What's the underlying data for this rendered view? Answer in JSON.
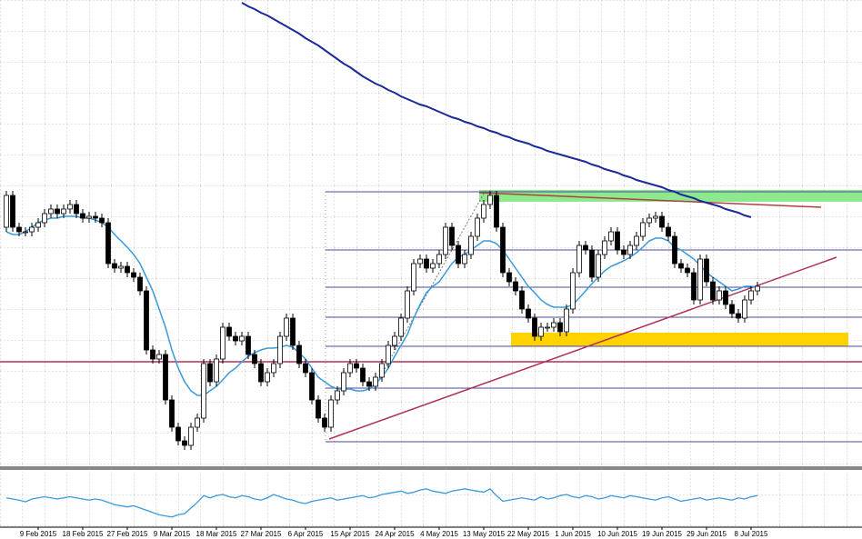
{
  "chart_data": {
    "type": "candlestick",
    "categories": [
      null,
      null,
      null,
      null,
      null,
      "9 Feb 2015",
      null,
      null,
      null,
      null,
      null,
      null,
      "18 Feb 2015",
      null,
      null,
      null,
      null,
      null,
      null,
      "27 Feb 2015",
      null,
      null,
      null,
      null,
      null,
      null,
      "9 Mar 2015",
      null,
      null,
      null,
      null,
      null,
      null,
      "18 Mar 2015",
      null,
      null,
      null,
      null,
      null,
      null,
      "27 Mar 2015",
      null,
      null,
      null,
      null,
      null,
      null,
      "6 Apr 2015",
      null,
      null,
      null,
      null,
      null,
      null,
      "15 Apr 2015",
      null,
      null,
      null,
      null,
      null,
      null,
      "24 Apr 2015",
      null,
      null,
      null,
      null,
      null,
      null,
      "4 May 2015",
      null,
      null,
      null,
      null,
      null,
      null,
      "13 May 2015",
      null,
      null,
      null,
      null,
      null,
      null,
      "22 May 2015",
      null,
      null,
      null,
      null,
      null,
      null,
      "1 Jun 2015",
      null,
      null,
      null,
      null,
      null,
      null,
      "10 Jun 2015",
      null,
      null,
      null,
      null,
      null,
      null,
      "19 Jun 2015",
      null,
      null,
      null,
      null,
      null,
      null,
      "29 Jun 2015",
      null,
      null,
      null,
      null,
      null,
      null,
      "8 Jul 2015",
      null
    ],
    "open": [
      263,
      298,
      263,
      258,
      258,
      263,
      268,
      278,
      283,
      278,
      283,
      288,
      278,
      273,
      275,
      273,
      268,
      223,
      218,
      220,
      213,
      208,
      193,
      128,
      118,
      123,
      73,
      43,
      28,
      23,
      43,
      53,
      113,
      93,
      118,
      153,
      143,
      138,
      143,
      123,
      113,
      93,
      103,
      113,
      143,
      163,
      133,
      113,
      103,
      73,
      53,
      43,
      73,
      83,
      103,
      113,
      108,
      93,
      88,
      98,
      113,
      133,
      143,
      163,
      193,
      223,
      228,
      218,
      223,
      233,
      263,
      243,
      223,
      233,
      253,
      273,
      288,
      298,
      263,
      213,
      203,
      193,
      173,
      163,
      143,
      153,
      153,
      158,
      148,
      173,
      213,
      243,
      238,
      208,
      233,
      248,
      258,
      238,
      233,
      243,
      253,
      268,
      273,
      275,
      263,
      253,
      223,
      218,
      213,
      183,
      228,
      203,
      183,
      193,
      178,
      168,
      163,
      183,
      193
    ],
    "high": [
      303,
      303,
      268,
      263,
      268,
      273,
      283,
      288,
      288,
      288,
      293,
      293,
      283,
      280,
      280,
      278,
      273,
      228,
      225,
      225,
      218,
      213,
      198,
      133,
      128,
      128,
      78,
      48,
      33,
      48,
      58,
      118,
      118,
      123,
      158,
      158,
      148,
      148,
      148,
      128,
      118,
      108,
      118,
      148,
      168,
      168,
      138,
      118,
      108,
      78,
      58,
      78,
      88,
      108,
      118,
      118,
      113,
      98,
      103,
      118,
      138,
      148,
      168,
      198,
      228,
      233,
      233,
      228,
      238,
      268,
      268,
      248,
      238,
      258,
      278,
      293,
      303,
      303,
      268,
      218,
      208,
      198,
      178,
      168,
      158,
      158,
      163,
      163,
      178,
      218,
      248,
      248,
      243,
      238,
      253,
      263,
      263,
      243,
      248,
      258,
      273,
      278,
      280,
      280,
      268,
      258,
      228,
      223,
      218,
      233,
      233,
      208,
      198,
      198,
      183,
      173,
      188,
      198,
      203
    ],
    "low": [
      258,
      258,
      253,
      253,
      253,
      258,
      263,
      273,
      273,
      273,
      278,
      273,
      268,
      268,
      268,
      263,
      218,
      213,
      213,
      208,
      203,
      188,
      123,
      113,
      113,
      68,
      38,
      23,
      18,
      18,
      38,
      48,
      88,
      88,
      113,
      138,
      133,
      133,
      118,
      108,
      88,
      88,
      98,
      108,
      138,
      128,
      108,
      98,
      68,
      48,
      38,
      38,
      68,
      78,
      98,
      103,
      88,
      83,
      83,
      93,
      108,
      128,
      138,
      158,
      188,
      218,
      213,
      213,
      218,
      228,
      238,
      218,
      218,
      228,
      248,
      268,
      283,
      258,
      208,
      198,
      188,
      168,
      158,
      138,
      138,
      148,
      148,
      143,
      143,
      168,
      208,
      233,
      203,
      203,
      228,
      243,
      233,
      228,
      228,
      238,
      248,
      263,
      268,
      258,
      248,
      218,
      213,
      208,
      178,
      178,
      198,
      178,
      178,
      173,
      163,
      158,
      158,
      178,
      188
    ],
    "close": [
      298,
      263,
      258,
      258,
      263,
      268,
      278,
      283,
      278,
      283,
      288,
      278,
      273,
      275,
      273,
      268,
      223,
      218,
      220,
      213,
      208,
      193,
      128,
      118,
      123,
      73,
      43,
      28,
      23,
      43,
      53,
      113,
      93,
      118,
      153,
      143,
      138,
      143,
      123,
      113,
      93,
      103,
      113,
      143,
      163,
      133,
      113,
      103,
      73,
      53,
      43,
      73,
      83,
      103,
      113,
      108,
      93,
      88,
      98,
      113,
      133,
      143,
      163,
      193,
      223,
      228,
      218,
      223,
      233,
      263,
      243,
      223,
      233,
      253,
      273,
      288,
      298,
      263,
      213,
      203,
      193,
      173,
      163,
      143,
      153,
      153,
      158,
      148,
      173,
      213,
      243,
      238,
      208,
      233,
      248,
      258,
      238,
      233,
      243,
      253,
      268,
      273,
      275,
      263,
      253,
      223,
      218,
      213,
      183,
      228,
      203,
      183,
      193,
      178,
      168,
      163,
      183,
      193,
      198
    ],
    "ylim": [
      0,
      513
    ],
    "up_color": "#ffffff",
    "down_color": "#000000",
    "overlays": [
      {
        "color": "#3a9ad9",
        "values": [
          258,
          255,
          255,
          258,
          263,
          268,
          271,
          273,
          273,
          275,
          275,
          275,
          273,
          273,
          271,
          268,
          263,
          255,
          248,
          241,
          233,
          223,
          208,
          193,
          173,
          153,
          128,
          108,
          93,
          83,
          78,
          78,
          83,
          88,
          95,
          103,
          108,
          115,
          121,
          125,
          128,
          130,
          130,
          131,
          133,
          131,
          125,
          118,
          108,
          98,
          93,
          88,
          85,
          85,
          85,
          83,
          83,
          85,
          91,
          98,
          108,
          121,
          133,
          145,
          163,
          178,
          191,
          198,
          203,
          213,
          223,
          230,
          233,
          238,
          243,
          248,
          248,
          245,
          238,
          228,
          218,
          208,
          198,
          191,
          183,
          178,
          175,
          175,
          175,
          178,
          185,
          193,
          201,
          208,
          215,
          220,
          223,
          226,
          230,
          235,
          241,
          248,
          251,
          251,
          248,
          241,
          238,
          233,
          228,
          221,
          213,
          208,
          203,
          198,
          193,
          195,
          198,
          198,
          197
        ]
      },
      {
        "color": "#1c2a99",
        "values": [
          null,
          null,
          null,
          null,
          null,
          null,
          null,
          null,
          null,
          null,
          null,
          null,
          null,
          null,
          null,
          null,
          null,
          null,
          null,
          null,
          null,
          null,
          null,
          null,
          null,
          null,
          null,
          null,
          null,
          null,
          null,
          null,
          null,
          null,
          null,
          null,
          null,
          510,
          506,
          503,
          499,
          496,
          492,
          488,
          484,
          480,
          476,
          471,
          467,
          463,
          458,
          453,
          448,
          443,
          439,
          434,
          429,
          425,
          421,
          418,
          414,
          411,
          407,
          404,
          401,
          398,
          396,
          393,
          390,
          387,
          384,
          382,
          379,
          377,
          374,
          372,
          369,
          367,
          364,
          362,
          359,
          357,
          355,
          352,
          350,
          347,
          345,
          343,
          341,
          339,
          337,
          335,
          332,
          330,
          327,
          325,
          323,
          320,
          318,
          315,
          313,
          311,
          309,
          307,
          304,
          302,
          299,
          297,
          295,
          292,
          290,
          288,
          286,
          283,
          281,
          279,
          276,
          274,
          null
        ]
      }
    ],
    "levels": {
      "color": "#4b4b9a",
      "values": [
        302,
        238,
        197,
        164,
        132,
        86,
        27
      ]
    },
    "support": {
      "color": "#b0305a",
      "values": [
        115
      ]
    },
    "oscillator": {
      "color": "#3a9ad9",
      "ylim": [
        0,
        100
      ],
      "values": [
        52,
        50,
        48,
        45,
        50,
        52,
        54,
        52,
        50,
        52,
        54,
        52,
        50,
        48,
        50,
        48,
        44,
        40,
        38,
        36,
        38,
        34,
        30,
        26,
        22,
        20,
        18,
        22,
        24,
        34,
        44,
        56,
        52,
        56,
        58,
        54,
        52,
        56,
        54,
        50,
        48,
        52,
        58,
        54,
        50,
        48,
        44,
        42,
        46,
        48,
        50,
        52,
        48,
        50,
        52,
        54,
        56,
        52,
        54,
        58,
        60,
        62,
        64,
        60,
        62,
        66,
        68,
        64,
        62,
        60,
        64,
        66,
        68,
        66,
        64,
        62,
        68,
        56,
        46,
        48,
        50,
        52,
        50,
        48,
        54,
        50,
        52,
        56,
        58,
        54,
        52,
        56,
        54,
        50,
        52,
        56,
        54,
        52,
        56,
        54,
        52,
        50,
        48,
        52,
        54,
        50,
        46,
        48,
        50,
        52,
        48,
        50,
        52,
        50,
        48,
        52,
        50,
        54,
        56
      ]
    }
  }
}
